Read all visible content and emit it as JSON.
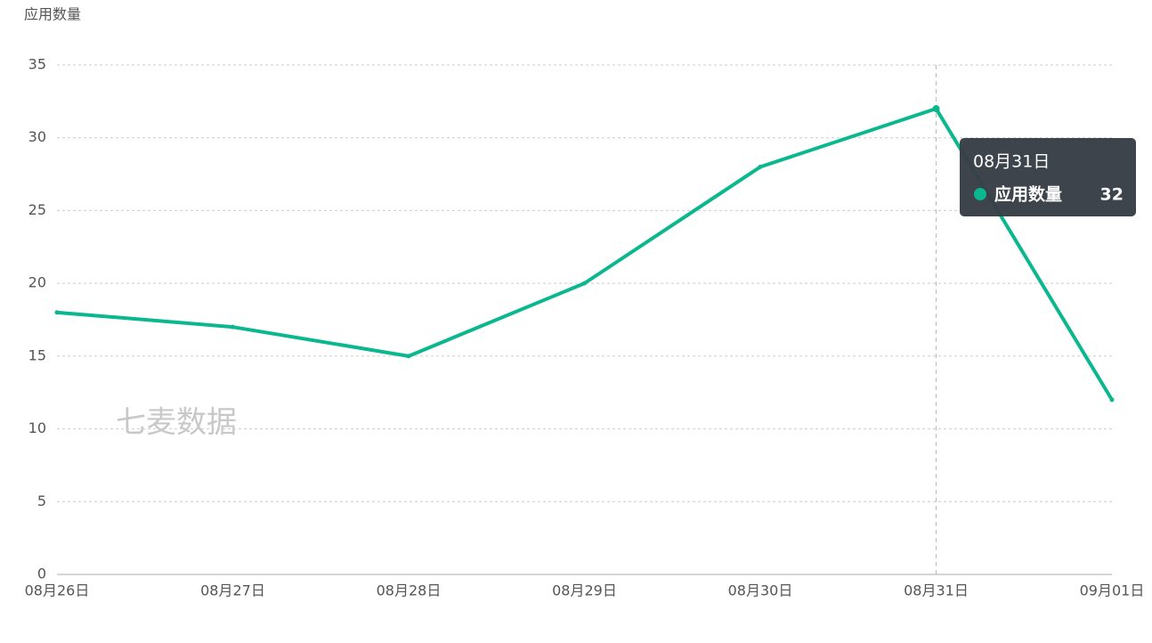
{
  "chart_data": {
    "type": "line",
    "y_label": "应用数量",
    "watermark": "七麦数据",
    "categories": [
      "08月26日",
      "08月27日",
      "08月28日",
      "08月29日",
      "08月30日",
      "08月31日",
      "09月01日"
    ],
    "series": [
      {
        "name": "应用数量",
        "color": "#0bb78e",
        "values": [
          18,
          17,
          15,
          20,
          28,
          32,
          12
        ]
      }
    ],
    "ylim": [
      0,
      35
    ],
    "yticks": [
      0,
      5,
      10,
      15,
      20,
      25,
      30,
      35
    ],
    "grid": true
  }
}
